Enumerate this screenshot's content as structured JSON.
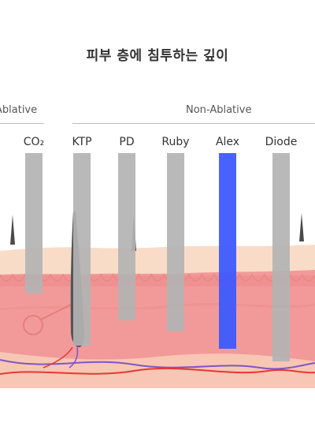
{
  "title": "피부 층에 침투하는 깊이",
  "groups": [
    {
      "label": "Ablative"
    },
    {
      "label": "Non-Ablative"
    }
  ],
  "lasers": [
    {
      "label": "CO₂",
      "color": "#b3b3b3"
    },
    {
      "label": "KTP",
      "color": "#b3b3b3"
    },
    {
      "label": "PD",
      "color": "#b3b3b3"
    },
    {
      "label": "Ruby",
      "color": "#b3b3b3"
    },
    {
      "label": "Alex",
      "color": "#3d5afe",
      "highlighted": true
    },
    {
      "label": "Diode",
      "color": "#b3b3b3"
    }
  ],
  "colors": {
    "epidermis": "#f9dcc8",
    "dermis": "#f29a9a",
    "subcutis": "#f8c6b4",
    "hair": "#4a4a4a",
    "artery": "#e53935",
    "vein": "#7e57c2"
  }
}
